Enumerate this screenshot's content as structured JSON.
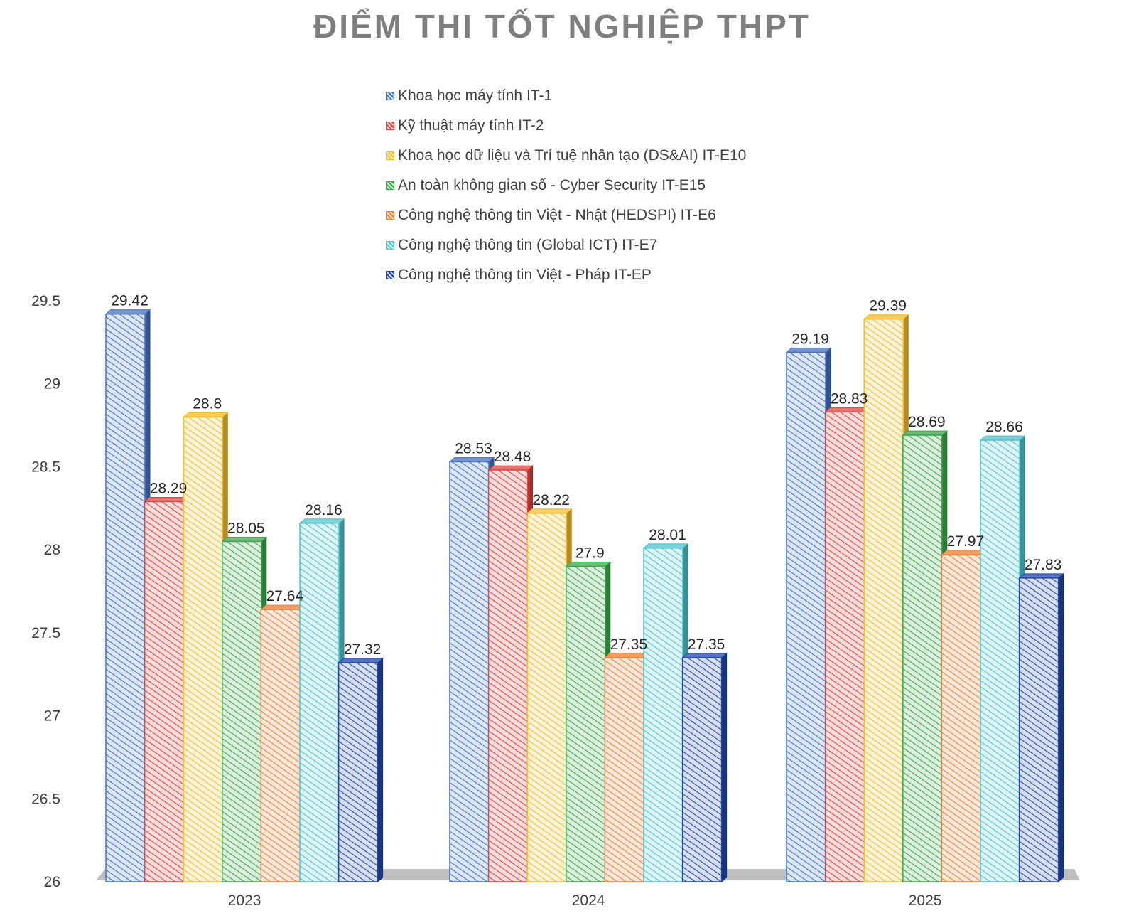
{
  "chart_data": {
    "type": "bar",
    "title": "ĐIỂM THI TỐT NGHIỆP THPT",
    "categories": [
      "2023",
      "2024",
      "2025"
    ],
    "ylim": [
      26,
      29.5
    ],
    "yticks": [
      "26",
      "26.5",
      "27",
      "27.5",
      "28",
      "28.5",
      "29",
      "29.5"
    ],
    "series": [
      {
        "name": "Khoa học máy tính IT-1",
        "color": "#4472C4",
        "values": [
          29.42,
          28.53,
          29.19
        ],
        "labels": [
          "29.42",
          "28.53",
          "29.19"
        ]
      },
      {
        "name": "Kỹ thuật máy tính IT-2",
        "color": "#E0443D",
        "values": [
          28.29,
          28.48,
          28.83
        ],
        "labels": [
          "28.29",
          "28.48",
          "28.83"
        ]
      },
      {
        "name": "Khoa học dữ liệu và Trí tuệ nhân tạo (DS&AI) IT-E10",
        "color": "#F2BC2B",
        "values": [
          28.8,
          28.22,
          29.39
        ],
        "labels": [
          "28.8",
          "28.22",
          "29.39"
        ]
      },
      {
        "name": "An toàn không gian số - Cyber Security IT-E15",
        "color": "#3DA64A",
        "values": [
          28.05,
          27.9,
          28.69
        ],
        "labels": [
          "28.05",
          "27.9",
          "28.69"
        ]
      },
      {
        "name": "Công nghệ thông tin Việt - Nhật (HEDSPI) IT-E6",
        "color": "#F07F33",
        "values": [
          27.64,
          27.35,
          27.97
        ],
        "labels": [
          "27.64",
          "27.35",
          "27.97"
        ]
      },
      {
        "name": "Công nghệ thông tin (Global ICT) IT-E7",
        "color": "#4FC3CC",
        "values": [
          28.16,
          28.01,
          28.66
        ],
        "labels": [
          "28.16",
          "28.01",
          "28.66"
        ]
      },
      {
        "name": "Công nghệ thông tin Việt - Pháp IT-EP",
        "color": "#2047A8",
        "values": [
          27.32,
          27.35,
          27.83
        ],
        "labels": [
          "27.32",
          "27.35",
          "27.83"
        ]
      }
    ],
    "legend_position": "top",
    "grid": false
  }
}
